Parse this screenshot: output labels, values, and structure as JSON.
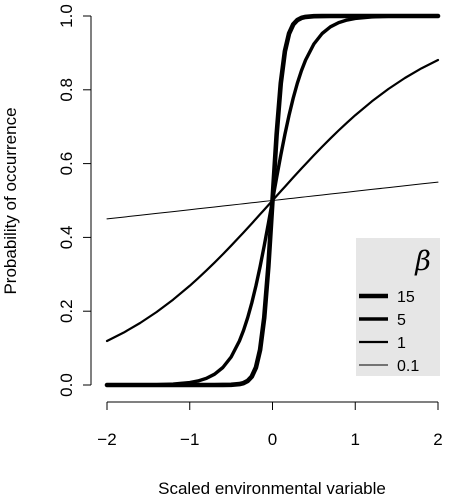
{
  "chart_data": {
    "type": "line",
    "title": "",
    "xlabel": "Scaled environmental variable",
    "ylabel": "Probability of occurrence",
    "xlim": [
      -2,
      2
    ],
    "ylim": [
      0,
      1
    ],
    "x_ticks": [
      -2,
      -1,
      0,
      1,
      2
    ],
    "x_tick_labels": [
      "−2",
      "−1",
      "0",
      "1",
      "2"
    ],
    "y_ticks": [
      0,
      0.2,
      0.4,
      0.6,
      0.8,
      1
    ],
    "y_tick_labels": [
      "0.0",
      "0.2",
      "0.4",
      "0.6",
      "0.8",
      "1.0"
    ],
    "grid": false,
    "legend": {
      "title": "β",
      "position": "bottom-right",
      "background": "#e6e6e6"
    },
    "line_color": "#000000",
    "x_samples": [
      -2,
      -1.8,
      -1.6,
      -1.4,
      -1.2,
      -1,
      -0.9,
      -0.8,
      -0.7,
      -0.6,
      -0.5,
      -0.4,
      -0.35,
      -0.3,
      -0.25,
      -0.2,
      -0.15,
      -0.1,
      -0.05,
      0,
      0.05,
      0.1,
      0.15,
      0.2,
      0.25,
      0.3,
      0.35,
      0.4,
      0.5,
      0.6,
      0.7,
      0.8,
      0.9,
      1,
      1.2,
      1.4,
      1.6,
      1.8,
      2
    ],
    "series": [
      {
        "name": "15",
        "beta": 15,
        "values": [
          0.0,
          0.0,
          0.0,
          0.0,
          0.0,
          0.0,
          0.0,
          0.0,
          0.0,
          0.0001,
          0.0006,
          0.0025,
          0.0052,
          0.011,
          0.023,
          0.0474,
          0.0953,
          0.1824,
          0.3208,
          0.5,
          0.6792,
          0.8176,
          0.9047,
          0.9526,
          0.977,
          0.989,
          0.9948,
          0.9975,
          0.9994,
          0.9999,
          1.0,
          1.0,
          1.0,
          1.0,
          1.0,
          1.0,
          1.0,
          1.0,
          1.0
        ],
        "width": 4.6
      },
      {
        "name": "5",
        "beta": 5,
        "values": [
          0.0,
          0.0001,
          0.0003,
          0.0009,
          0.0025,
          0.0067,
          0.011,
          0.018,
          0.0293,
          0.0474,
          0.0759,
          0.1192,
          0.148,
          0.1824,
          0.2227,
          0.2689,
          0.3208,
          0.3775,
          0.4378,
          0.5,
          0.5622,
          0.6225,
          0.6792,
          0.7311,
          0.7773,
          0.8176,
          0.852,
          0.8808,
          0.9241,
          0.9526,
          0.9707,
          0.982,
          0.989,
          0.9933,
          0.9975,
          0.9991,
          0.9997,
          0.9999,
          1.0
        ],
        "width": 3.4
      },
      {
        "name": "1",
        "beta": 1,
        "values": [
          0.1192,
          0.1419,
          0.168,
          0.1978,
          0.2315,
          0.2689,
          0.2891,
          0.31,
          0.3318,
          0.3543,
          0.3775,
          0.4013,
          0.4134,
          0.4256,
          0.4378,
          0.4502,
          0.4626,
          0.475,
          0.4875,
          0.5,
          0.5125,
          0.525,
          0.5374,
          0.5498,
          0.5622,
          0.5744,
          0.5866,
          0.5987,
          0.6225,
          0.6457,
          0.6682,
          0.69,
          0.7109,
          0.7311,
          0.7685,
          0.8022,
          0.832,
          0.8581,
          0.8808
        ],
        "width": 2.2
      },
      {
        "name": "0.1",
        "beta": 0.1,
        "values": [
          0.4502,
          0.4551,
          0.4601,
          0.4651,
          0.47,
          0.475,
          0.4775,
          0.48,
          0.4825,
          0.485,
          0.4875,
          0.49,
          0.4913,
          0.4925,
          0.4938,
          0.495,
          0.4963,
          0.4975,
          0.4988,
          0.5,
          0.5012,
          0.5025,
          0.5037,
          0.505,
          0.5062,
          0.5075,
          0.5087,
          0.51,
          0.5125,
          0.515,
          0.5175,
          0.52,
          0.5225,
          0.525,
          0.53,
          0.5349,
          0.5399,
          0.5449,
          0.5498
        ],
        "width": 1.0
      }
    ]
  }
}
